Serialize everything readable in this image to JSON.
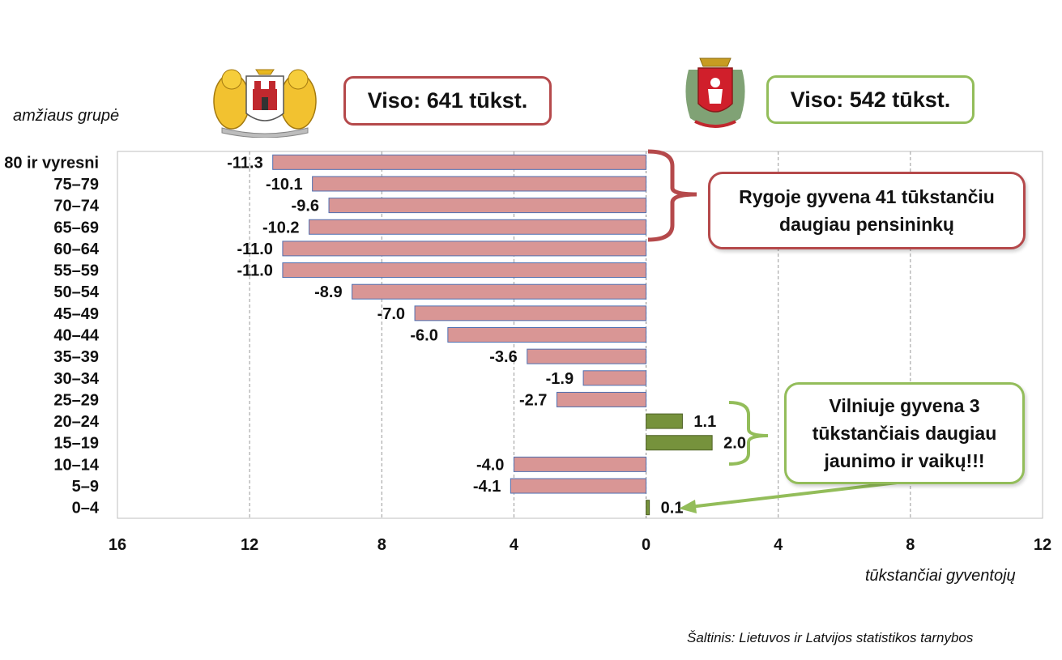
{
  "chart_data": {
    "type": "bar",
    "orientation": "horizontal",
    "ylabel": "amžiaus grupė",
    "xlabel": "tūkstančiai gyventojų",
    "categories": [
      "80 ir vyresni",
      "75–79",
      "70–74",
      "65–69",
      "60–64",
      "55–59",
      "50–54",
      "45–49",
      "40–44",
      "35–39",
      "30–34",
      "25–29",
      "20–24",
      "15–19",
      "10–14",
      "5–9",
      "0–4"
    ],
    "values": [
      -11.3,
      -10.1,
      -9.6,
      -10.2,
      -11.0,
      -11.0,
      -8.9,
      -7.0,
      -6.0,
      -3.6,
      -1.9,
      -2.7,
      1.1,
      2.0,
      -4.0,
      -4.1,
      0.1
    ],
    "value_labels": [
      "-11.3",
      "-10.1",
      "-9.6",
      "-10.2",
      "-11.0",
      "-11.0",
      "-8.9",
      "-7.0",
      "-6.0",
      "-3.6",
      "-1.9",
      "-2.7",
      "1.1",
      "2.0",
      "-4.0",
      "-4.1",
      "0.1"
    ],
    "xlim": [
      -16,
      12
    ],
    "xticks": [
      -16,
      -12,
      -8,
      -4,
      0,
      4,
      8,
      12
    ],
    "xtick_labels": [
      "16",
      "12",
      "8",
      "4",
      "0",
      "4",
      "8",
      "12"
    ],
    "grid": "vertical dashed",
    "colors": {
      "negative": "#d99695",
      "negative_edge": "#4f6fb0",
      "positive": "#76923c",
      "positive_edge": "#4f6228"
    }
  },
  "totals": {
    "riga": "Viso: 641 tūkst.",
    "vilnius": "Viso: 542 tūkst."
  },
  "callouts": {
    "riga": "Rygoje gyvena 41 tūkstančiu daugiau pensininkų",
    "vilnius": "Vilniuje gyvena 3 tūkstančiais daugiau jaunimo ir vaikų!!!"
  },
  "source": "Šaltinis: Lietuvos ir Latvijos statistikos tarnybos",
  "icons": {
    "riga": "riga-coat-of-arms-icon",
    "vilnius": "vilnius-coat-of-arms-icon"
  },
  "colors": {
    "riga_accent": "#b5494b",
    "vilnius_accent": "#93bd5a"
  }
}
